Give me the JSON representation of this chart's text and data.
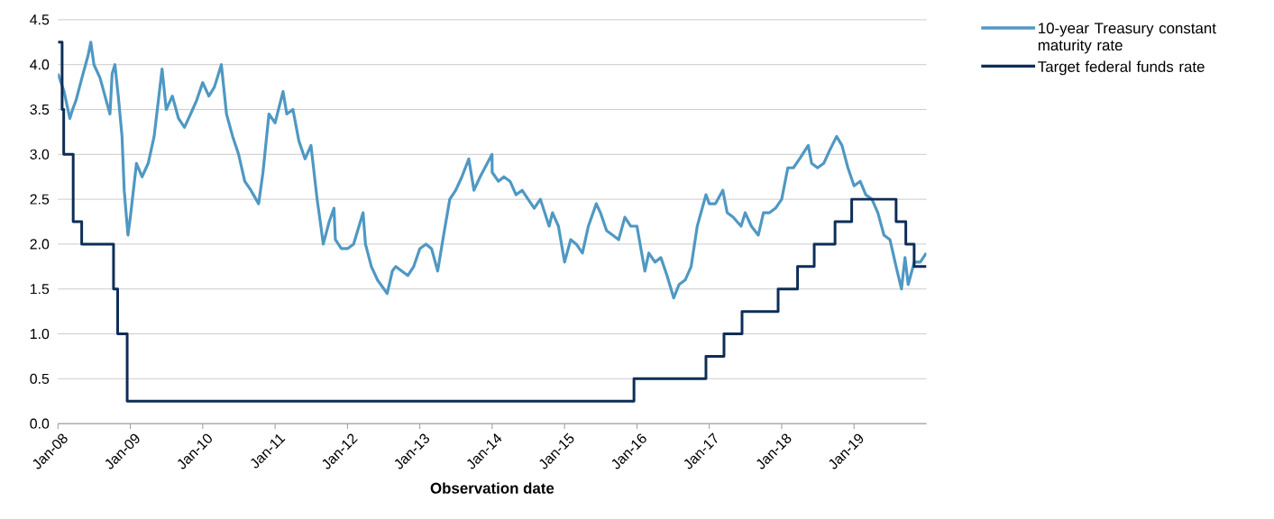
{
  "chart_data": {
    "type": "line",
    "xlabel": "Observation date",
    "xlim": [
      "2008-01-01",
      "2020-01-01"
    ],
    "xticks": [
      {
        "value": "2008-01-01",
        "label": "Jan-08"
      },
      {
        "value": "2009-01-01",
        "label": "Jan-09"
      },
      {
        "value": "2010-01-01",
        "label": "Jan-10"
      },
      {
        "value": "2011-01-01",
        "label": "Jan-11"
      },
      {
        "value": "2012-01-01",
        "label": "Jan-12"
      },
      {
        "value": "2013-01-01",
        "label": "Jan-13"
      },
      {
        "value": "2014-01-01",
        "label": "Jan-14"
      },
      {
        "value": "2015-01-01",
        "label": "Jan-15"
      },
      {
        "value": "2016-01-01",
        "label": "Jan-16"
      },
      {
        "value": "2017-01-01",
        "label": "Jan-17"
      },
      {
        "value": "2018-01-01",
        "label": "Jan-18"
      },
      {
        "value": "2019-01-01",
        "label": "Jan-19"
      }
    ],
    "ylim": [
      0,
      4.5
    ],
    "yticks": [
      {
        "value": 0,
        "label": "0.0"
      },
      {
        "value": 0.5,
        "label": "0.5"
      },
      {
        "value": 1,
        "label": "1.0"
      },
      {
        "value": 1.5,
        "label": "1.5"
      },
      {
        "value": 2,
        "label": "2.0"
      },
      {
        "value": 2.5,
        "label": "2.5"
      },
      {
        "value": 3,
        "label": "3.0"
      },
      {
        "value": 3.5,
        "label": "3.5"
      },
      {
        "value": 4,
        "label": "4.0"
      },
      {
        "value": 4.5,
        "label": "4.5"
      }
    ],
    "grid": "y",
    "legend": "right",
    "series": [
      {
        "name": "10-year Treasury constant maturity rate",
        "color": "#4f98c3",
        "x": [
          "2008-01-01",
          "2008-02-01",
          "2008-03-01",
          "2008-03-15",
          "2008-04-01",
          "2008-05-01",
          "2008-06-01",
          "2008-06-15",
          "2008-07-01",
          "2008-08-01",
          "2008-09-01",
          "2008-09-20",
          "2008-10-01",
          "2008-10-15",
          "2008-11-01",
          "2008-11-20",
          "2008-12-01",
          "2008-12-20",
          "2009-01-01",
          "2009-02-01",
          "2009-03-01",
          "2009-04-01",
          "2009-05-01",
          "2009-06-10",
          "2009-07-01",
          "2009-08-01",
          "2009-09-01",
          "2009-10-01",
          "2009-11-01",
          "2009-12-01",
          "2010-01-01",
          "2010-02-01",
          "2010-03-01",
          "2010-04-05",
          "2010-05-01",
          "2010-06-01",
          "2010-07-01",
          "2010-08-01",
          "2010-09-01",
          "2010-10-10",
          "2010-11-01",
          "2010-12-01",
          "2011-01-01",
          "2011-02-10",
          "2011-03-01",
          "2011-04-01",
          "2011-05-01",
          "2011-06-01",
          "2011-07-01",
          "2011-08-01",
          "2011-08-20",
          "2011-09-01",
          "2011-10-01",
          "2011-10-25",
          "2011-11-01",
          "2011-12-01",
          "2012-01-01",
          "2012-02-01",
          "2012-03-20",
          "2012-04-01",
          "2012-05-01",
          "2012-06-01",
          "2012-07-20",
          "2012-08-15",
          "2012-09-01",
          "2012-10-01",
          "2012-11-01",
          "2012-12-01",
          "2013-01-01",
          "2013-02-01",
          "2013-03-01",
          "2013-04-01",
          "2013-05-01",
          "2013-06-01",
          "2013-07-01",
          "2013-08-01",
          "2013-09-05",
          "2013-10-01",
          "2013-11-01",
          "2013-12-31",
          "2014-01-01",
          "2014-02-01",
          "2014-03-01",
          "2014-04-01",
          "2014-05-01",
          "2014-06-01",
          "2014-07-01",
          "2014-08-01",
          "2014-09-01",
          "2014-10-15",
          "2014-11-01",
          "2014-12-01",
          "2015-01-01",
          "2015-02-01",
          "2015-03-01",
          "2015-04-01",
          "2015-05-01",
          "2015-06-10",
          "2015-07-01",
          "2015-08-01",
          "2015-09-01",
          "2015-10-01",
          "2015-11-01",
          "2015-12-01",
          "2016-01-01",
          "2016-02-10",
          "2016-03-01",
          "2016-04-01",
          "2016-05-01",
          "2016-06-01",
          "2016-07-05",
          "2016-08-01",
          "2016-09-01",
          "2016-10-01",
          "2016-11-01",
          "2016-12-15",
          "2017-01-01",
          "2017-02-01",
          "2017-03-10",
          "2017-04-01",
          "2017-05-01",
          "2017-06-10",
          "2017-07-01",
          "2017-08-01",
          "2017-09-05",
          "2017-10-01",
          "2017-11-01",
          "2017-12-01",
          "2018-01-01",
          "2018-02-01",
          "2018-03-01",
          "2018-04-01",
          "2018-05-15",
          "2018-06-01",
          "2018-07-01",
          "2018-08-01",
          "2018-09-01",
          "2018-10-05",
          "2018-11-01",
          "2018-12-01",
          "2019-01-01",
          "2019-02-01",
          "2019-03-01",
          "2019-04-01",
          "2019-05-01",
          "2019-06-01",
          "2019-07-01",
          "2019-08-01",
          "2019-08-28",
          "2019-09-15",
          "2019-10-01",
          "2019-11-01",
          "2019-12-01",
          "2019-12-31"
        ],
        "values": [
          3.9,
          3.7,
          3.4,
          3.5,
          3.6,
          3.85,
          4.1,
          4.25,
          4.0,
          3.85,
          3.6,
          3.45,
          3.9,
          4.0,
          3.65,
          3.2,
          2.6,
          2.1,
          2.3,
          2.9,
          2.75,
          2.9,
          3.2,
          3.95,
          3.5,
          3.65,
          3.4,
          3.3,
          3.45,
          3.6,
          3.8,
          3.65,
          3.75,
          4.0,
          3.45,
          3.2,
          3.0,
          2.7,
          2.6,
          2.45,
          2.8,
          3.45,
          3.35,
          3.7,
          3.45,
          3.5,
          3.15,
          2.95,
          3.1,
          2.5,
          2.2,
          2.0,
          2.25,
          2.4,
          2.05,
          1.95,
          1.95,
          2.0,
          2.35,
          2.0,
          1.75,
          1.6,
          1.45,
          1.7,
          1.75,
          1.7,
          1.65,
          1.75,
          1.95,
          2.0,
          1.95,
          1.7,
          2.1,
          2.5,
          2.6,
          2.75,
          2.95,
          2.6,
          2.75,
          3.0,
          2.8,
          2.7,
          2.75,
          2.7,
          2.55,
          2.6,
          2.5,
          2.4,
          2.5,
          2.2,
          2.35,
          2.2,
          1.8,
          2.05,
          2.0,
          1.9,
          2.2,
          2.45,
          2.35,
          2.15,
          2.1,
          2.05,
          2.3,
          2.2,
          2.2,
          1.7,
          1.9,
          1.8,
          1.85,
          1.65,
          1.4,
          1.55,
          1.6,
          1.75,
          2.2,
          2.55,
          2.45,
          2.45,
          2.6,
          2.35,
          2.3,
          2.2,
          2.35,
          2.2,
          2.1,
          2.35,
          2.35,
          2.4,
          2.5,
          2.85,
          2.85,
          2.95,
          3.1,
          2.9,
          2.85,
          2.9,
          3.05,
          3.2,
          3.1,
          2.85,
          2.65,
          2.7,
          2.55,
          2.5,
          2.35,
          2.1,
          2.05,
          1.75,
          1.5,
          1.85,
          1.55,
          1.8,
          1.8,
          1.9
        ]
      },
      {
        "name": "Target federal funds rate",
        "color": "#0d2e57",
        "type": "step",
        "x": [
          "2008-01-01",
          "2008-01-22",
          "2008-01-30",
          "2008-03-18",
          "2008-04-30",
          "2008-10-08",
          "2008-10-29",
          "2008-12-16",
          "2015-12-17",
          "2016-12-15",
          "2017-03-16",
          "2017-06-15",
          "2017-12-14",
          "2018-03-22",
          "2018-06-14",
          "2018-09-27",
          "2018-12-20",
          "2019-08-01",
          "2019-09-19",
          "2019-10-31",
          "2020-01-01"
        ],
        "values": [
          4.25,
          3.5,
          3.0,
          2.25,
          2.0,
          1.5,
          1.0,
          0.25,
          0.5,
          0.75,
          1.0,
          1.25,
          1.5,
          1.75,
          2.0,
          2.25,
          2.5,
          2.25,
          2.0,
          1.75,
          1.75
        ]
      }
    ]
  }
}
